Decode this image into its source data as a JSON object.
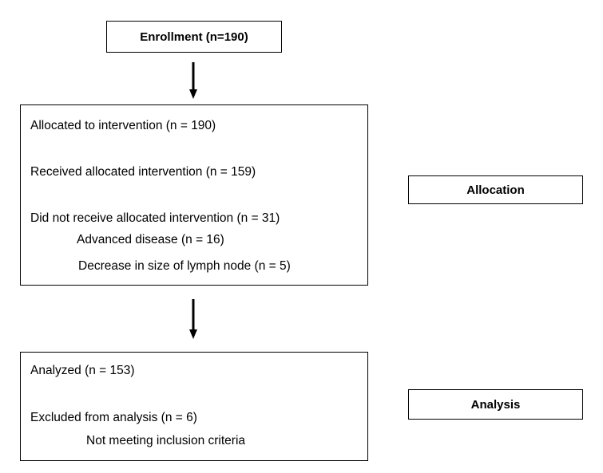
{
  "enrollment": {
    "label": "Enrollment (n=190)"
  },
  "allocation_box": {
    "allocated": "Allocated to intervention (n = 190)",
    "received": "Received allocated intervention (n = 159)",
    "not_received": "Did not receive allocated intervention (n = 31)",
    "advanced_disease": "Advanced disease (n = 16)",
    "decrease_lymph": "Decrease in size of lymph node (n = 5)"
  },
  "analysis_box": {
    "analyzed": "Analyzed (n = 153)",
    "excluded": "Excluded from analysis (n = 6)",
    "not_meeting": "Not meeting inclusion criteria"
  },
  "stage_labels": {
    "allocation": "Allocation",
    "analysis": "Analysis"
  },
  "colors": {
    "stroke": "#000000",
    "background": "#ffffff"
  }
}
